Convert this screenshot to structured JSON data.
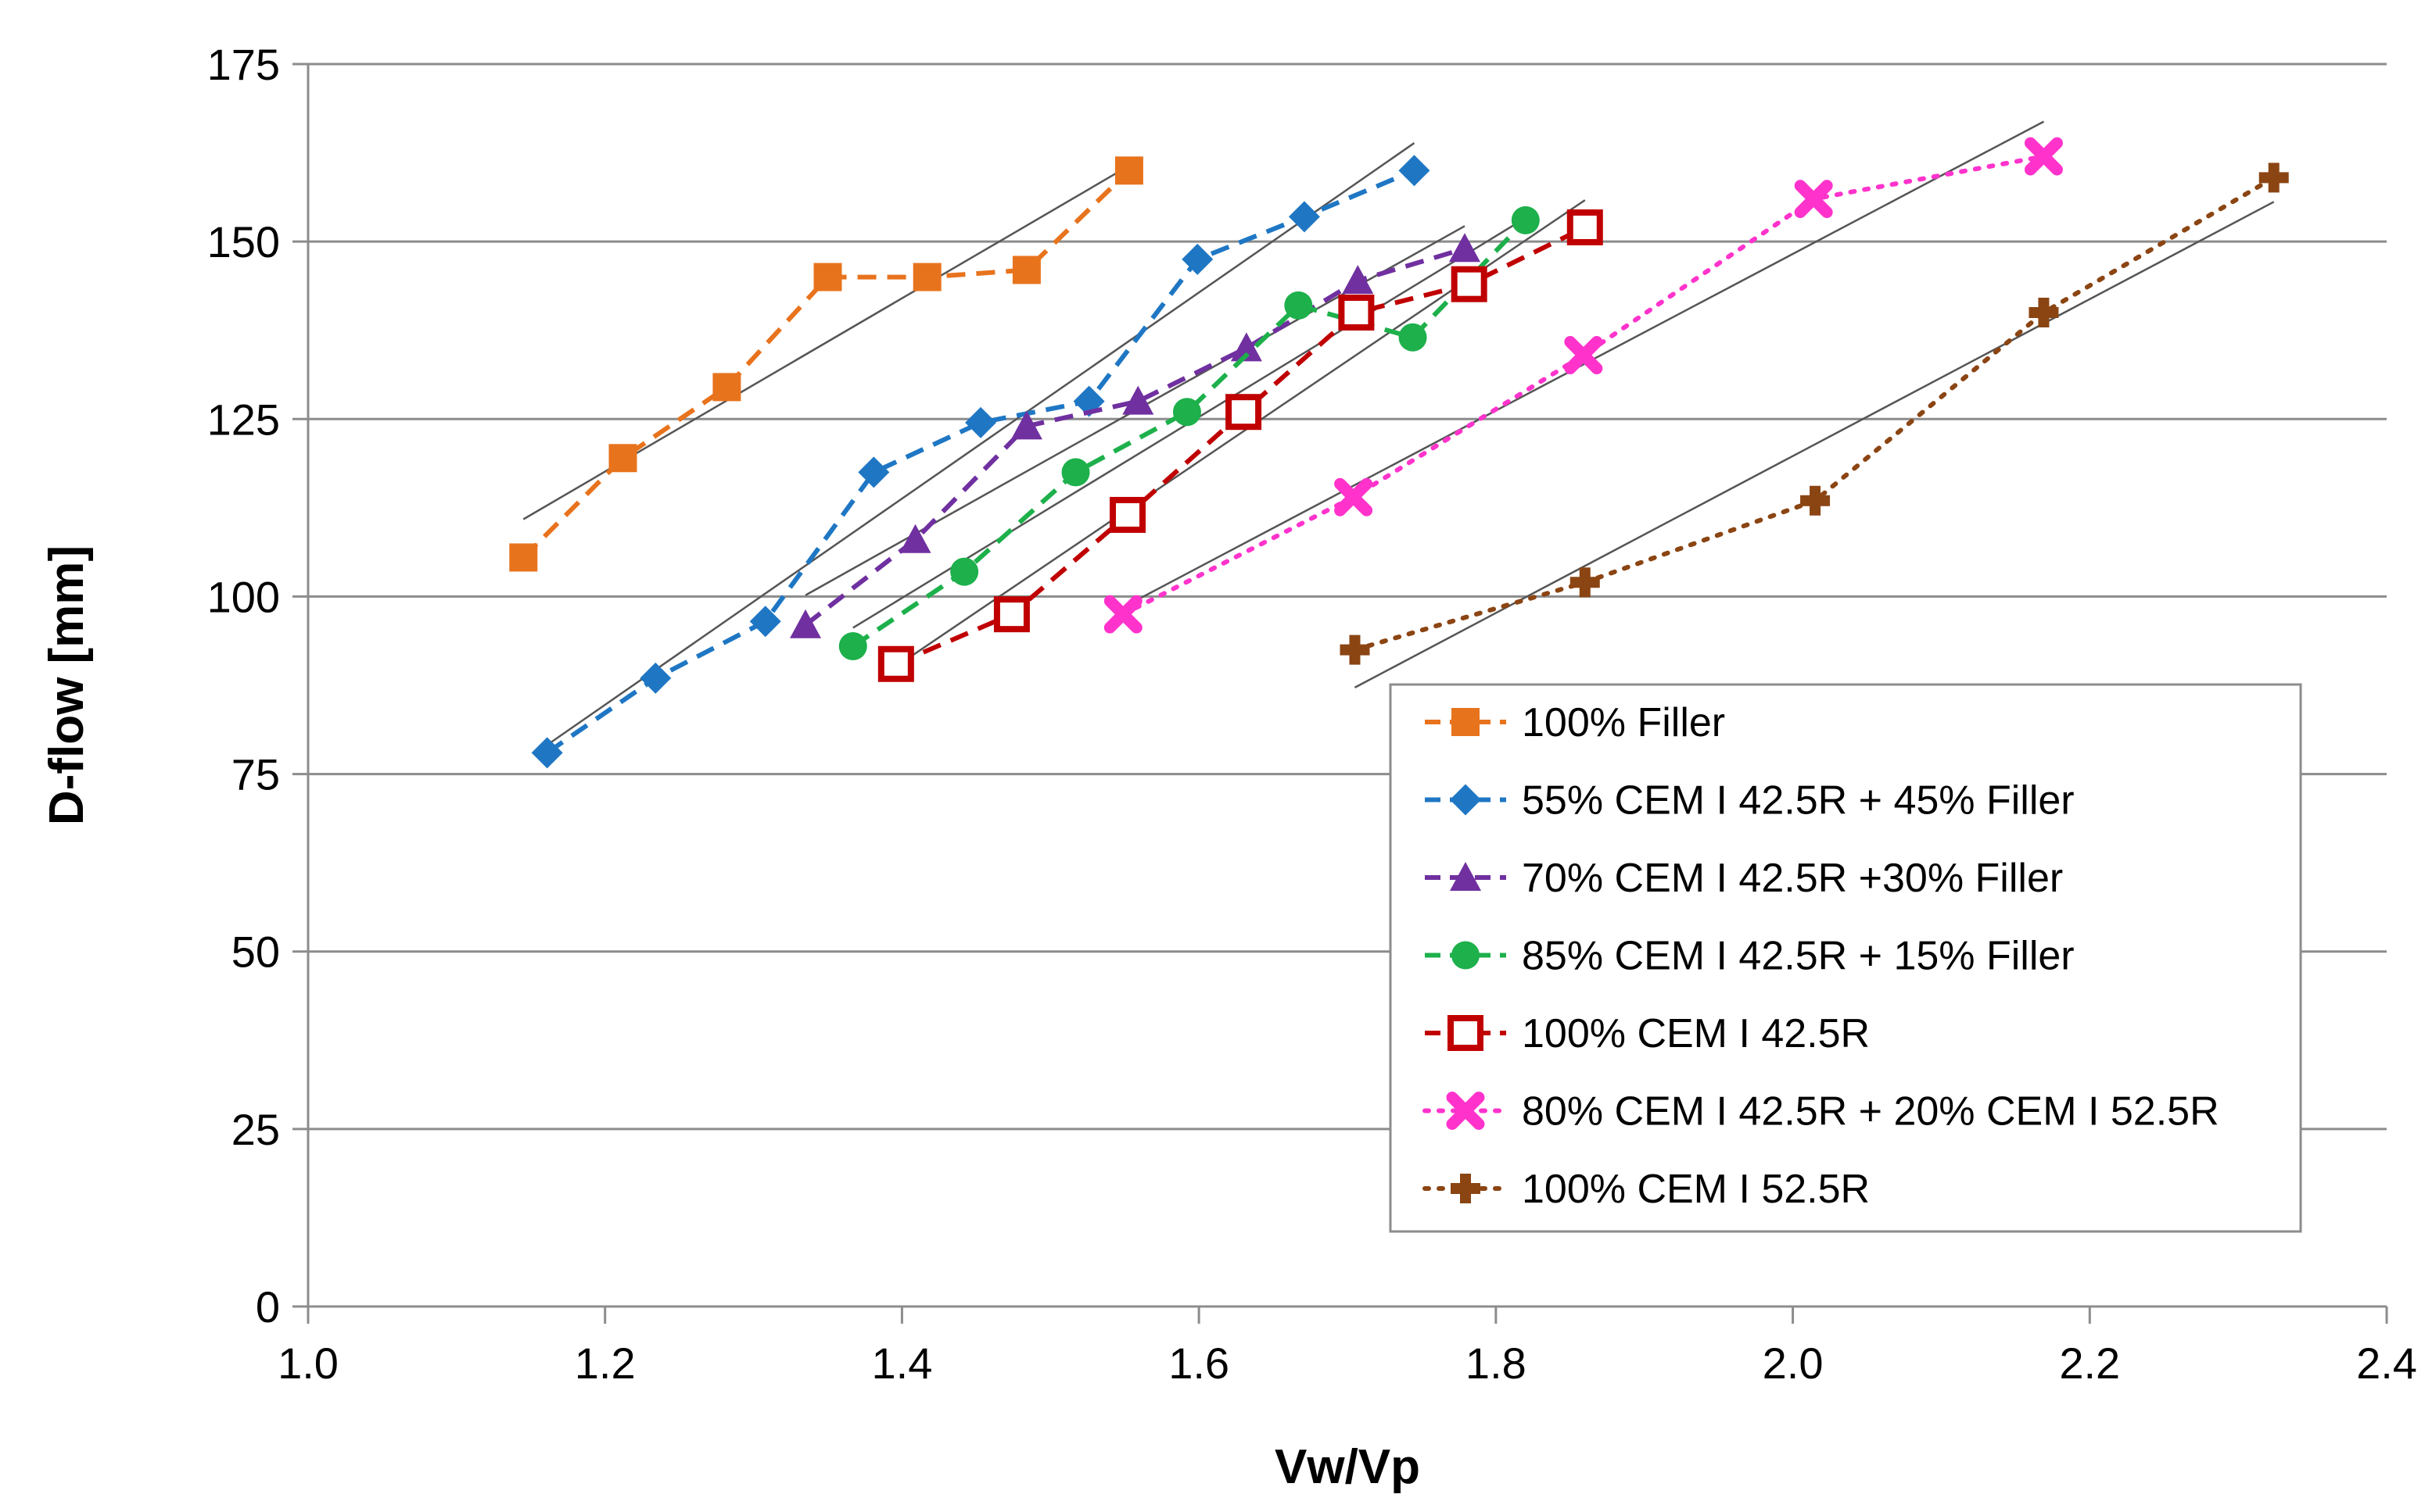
{
  "chart_data": {
    "type": "line",
    "title": "",
    "xlabel": "Vw/Vp",
    "ylabel": "D-flow [mm]",
    "xlim": [
      1.0,
      2.4
    ],
    "ylim": [
      0,
      175
    ],
    "xticks": [
      "1.0",
      "1.2",
      "1.4",
      "1.6",
      "1.8",
      "2.0",
      "2.2",
      "2.4"
    ],
    "yticks": [
      "0",
      "25",
      "50",
      "75",
      "100",
      "125",
      "150",
      "175"
    ],
    "grid": "horizontal",
    "legend_position": "bottom-right",
    "trendlines": true,
    "series": [
      {
        "name": "100% Filler",
        "color": "#E8731D",
        "marker": "square",
        "line_style": "dashed",
        "x": [
          1.145,
          1.212,
          1.282,
          1.35,
          1.417,
          1.484,
          1.553
        ],
        "y": [
          105.5,
          119.5,
          129.5,
          145.0,
          145.0,
          146.0,
          160.0
        ]
      },
      {
        "name": "55% CEM I 42.5R + 45% Filler",
        "color": "#1F77C4",
        "marker": "diamond",
        "line_style": "dashed",
        "x": [
          1.161,
          1.234,
          1.308,
          1.381,
          1.453,
          1.526,
          1.599,
          1.671,
          1.745
        ],
        "y": [
          78.0,
          88.5,
          96.5,
          117.5,
          124.5,
          127.5,
          147.5,
          153.5,
          160.0
        ]
      },
      {
        "name": "70% CEM I 42.5R +30% Filler",
        "color": "#7030A0",
        "marker": "triangle",
        "line_style": "dashed",
        "x": [
          1.335,
          1.409,
          1.484,
          1.559,
          1.632,
          1.707,
          1.779
        ],
        "y": [
          96.0,
          108.0,
          124.0,
          127.5,
          135.0,
          144.5,
          149.0
        ]
      },
      {
        "name": "85% CEM I 42.5R + 15% Filler",
        "color": "#1DB04B",
        "marker": "circle",
        "line_style": "dashed",
        "x": [
          1.367,
          1.442,
          1.517,
          1.592,
          1.667,
          1.744,
          1.82
        ],
        "y": [
          93.0,
          103.5,
          117.5,
          126.0,
          141.0,
          136.5,
          153.0
        ]
      },
      {
        "name": "100% CEM I 42.5R",
        "color": "#C00000",
        "marker": "open-square",
        "line_style": "dashed",
        "x": [
          1.396,
          1.474,
          1.552,
          1.63,
          1.706,
          1.782,
          1.86
        ],
        "y": [
          90.5,
          97.5,
          111.5,
          126.0,
          140.0,
          144.0,
          152.0
        ]
      },
      {
        "name": "80% CEM I 42.5R + 20% CEM I 52.5R",
        "color": "#FF33CC",
        "marker": "x",
        "line_style": "dotted",
        "x": [
          1.549,
          1.704,
          1.859,
          2.014,
          2.169
        ],
        "y": [
          97.5,
          114.0,
          134.0,
          156.0,
          162.0
        ]
      },
      {
        "name": "100% CEM I 52.5R",
        "color": "#8B4513",
        "marker": "plus",
        "line_style": "dotted",
        "x": [
          1.705,
          1.86,
          2.015,
          2.169,
          2.324
        ],
        "y": [
          92.5,
          102.0,
          113.5,
          140.0,
          159.0
        ]
      }
    ]
  }
}
